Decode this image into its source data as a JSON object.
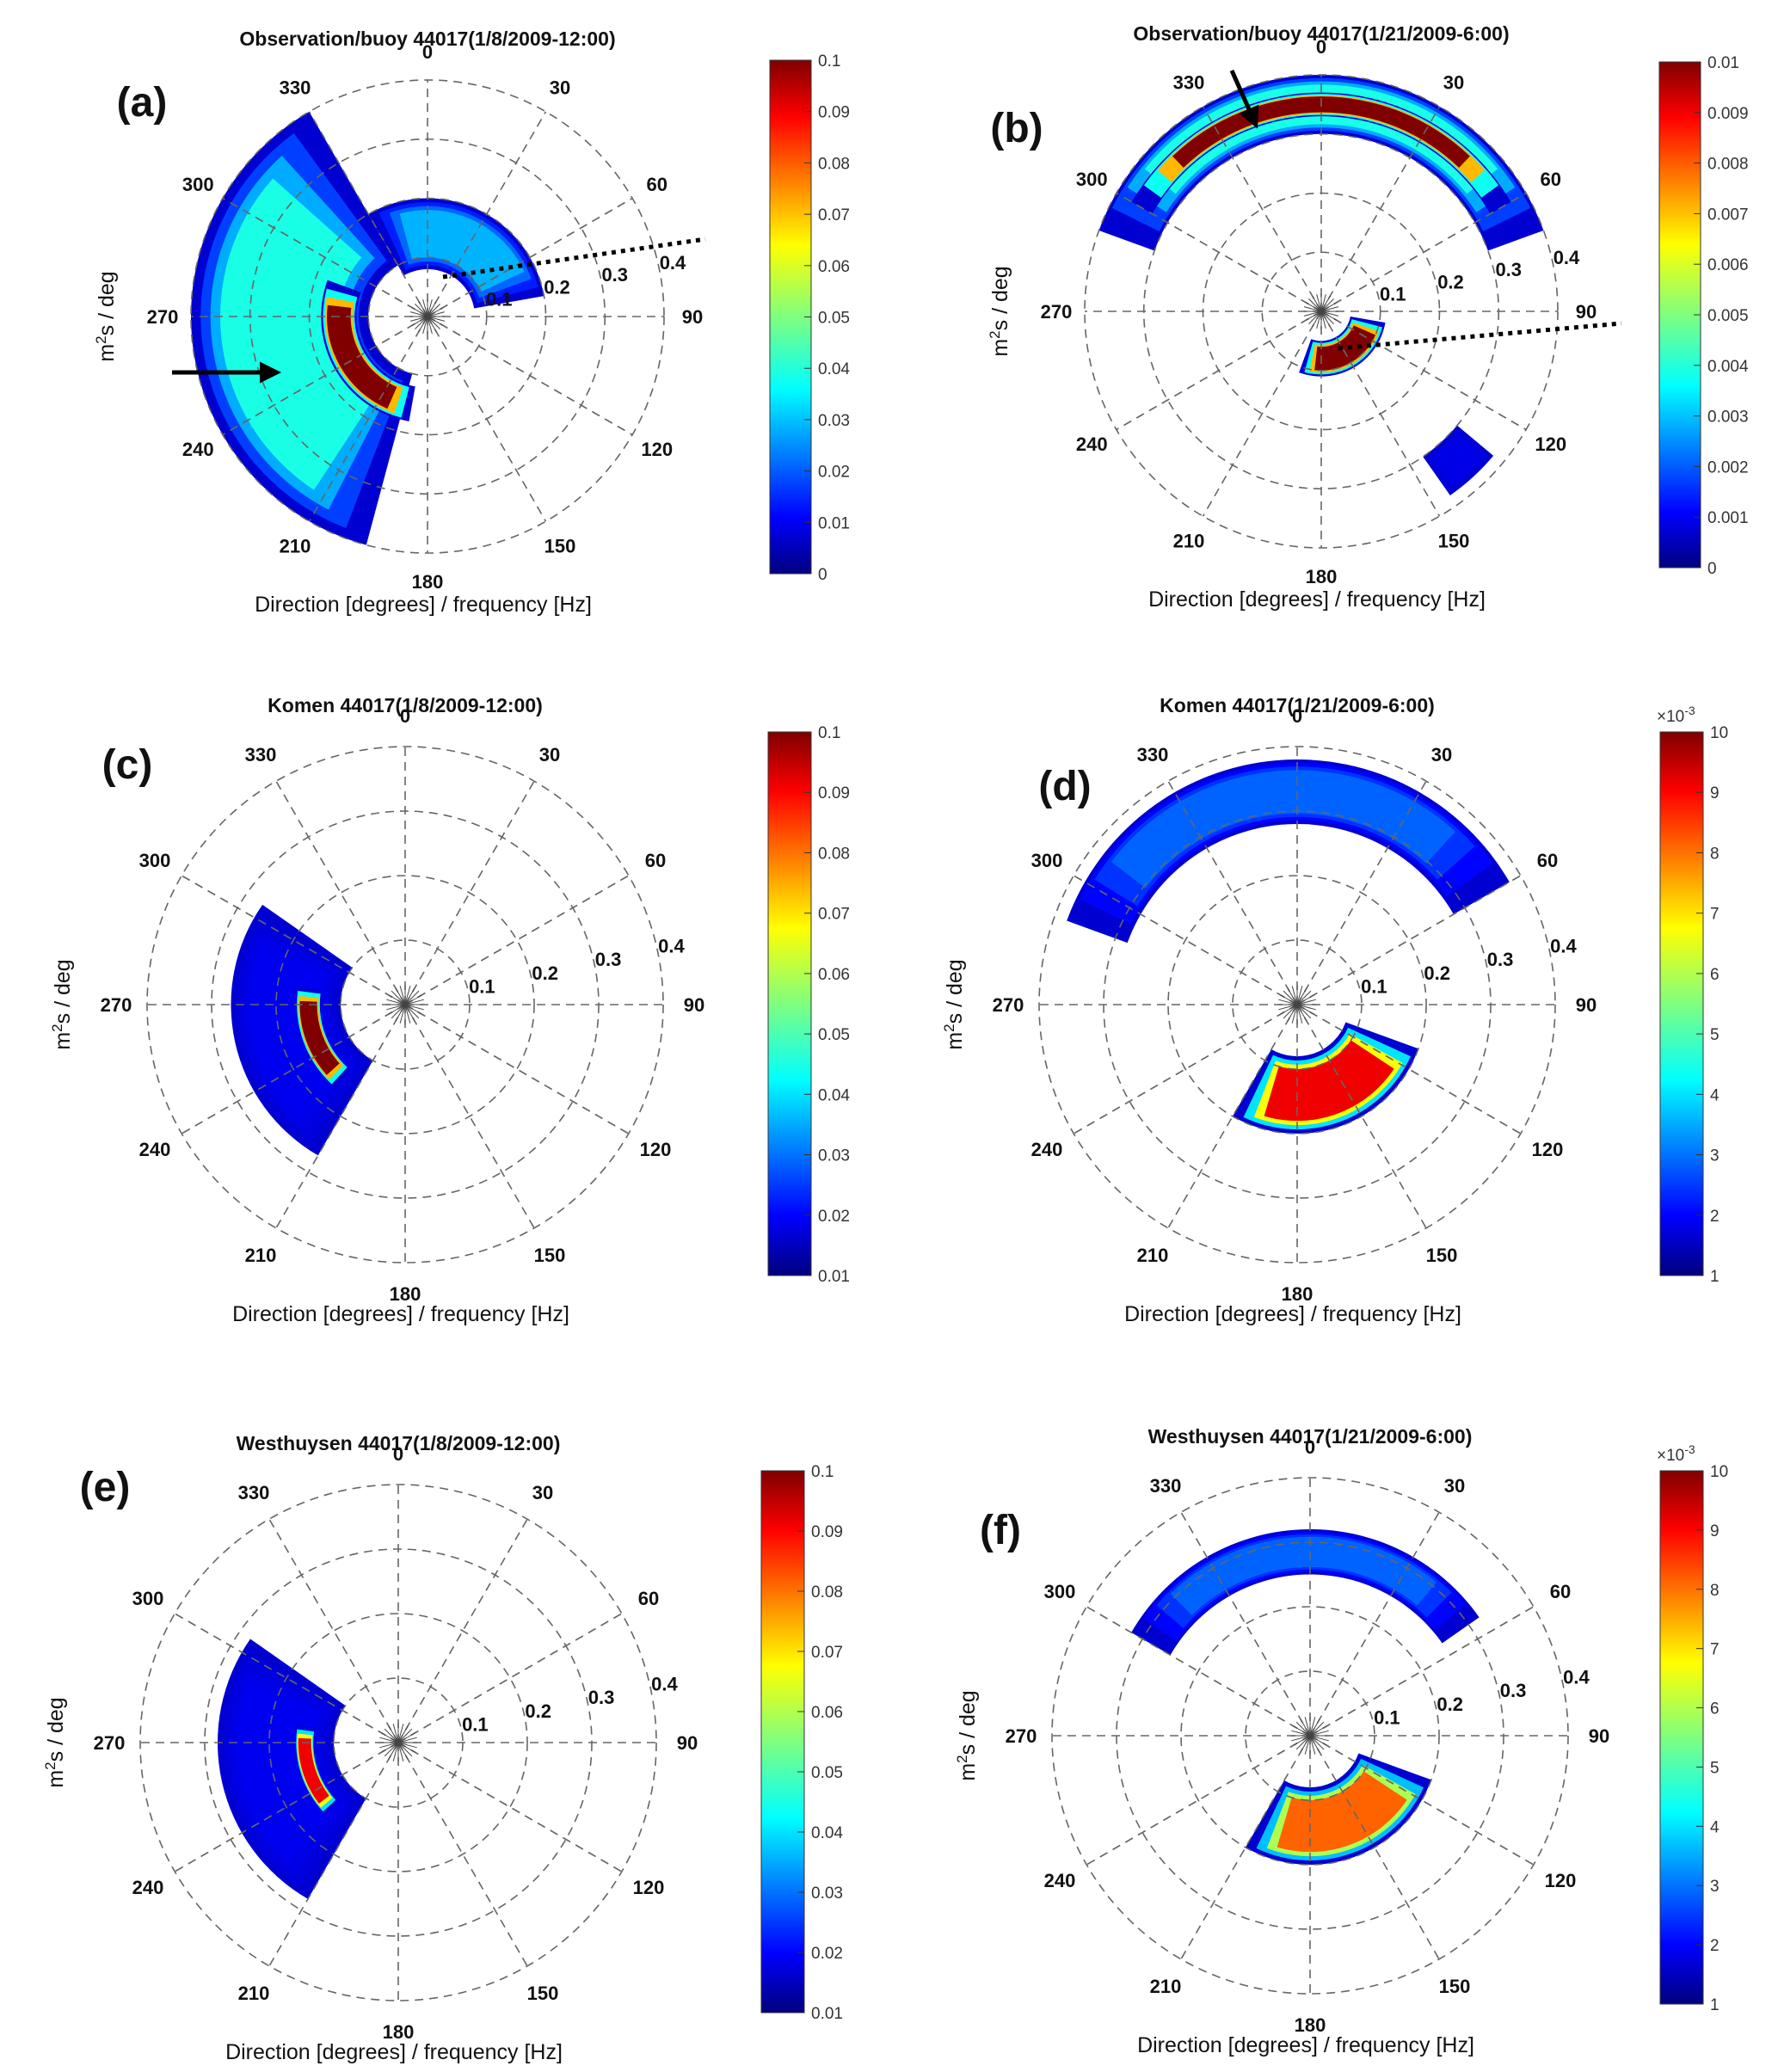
{
  "figure": {
    "xlabel": "Direction [degrees] / frequency [Hz]",
    "ylabel_base": "m",
    "ylabel_sup": "2",
    "ylabel_rest": "s / deg",
    "direction_ticks": [
      "0",
      "30",
      "60",
      "90",
      "120",
      "150",
      "180",
      "210",
      "240",
      "270",
      "300",
      "330"
    ],
    "frequency_ticks": [
      "0.1",
      "0.2",
      "0.3",
      "0.4"
    ],
    "colormap": "jet"
  },
  "chart_data": [
    {
      "panel_label": "(a)",
      "type": "polar-contour",
      "title": "Observation/buoy 44017(1/8/2009-12:00)",
      "colorbar": {
        "ticks": [
          "0",
          "0.01",
          "0.02",
          "0.03",
          "0.04",
          "0.05",
          "0.06",
          "0.07",
          "0.08",
          "0.09",
          "0.1"
        ],
        "range": [
          0,
          0.1
        ]
      },
      "annotations": [
        "arrow pointing at 258 deg / 0.4 Hz",
        "dotted line at ~75 deg"
      ],
      "energy_regions": [
        {
          "dir_from": 195,
          "dir_to": 330,
          "freq_from": 0.1,
          "freq_to": 0.4,
          "level": 0.04
        },
        {
          "dir_from": 190,
          "dir_to": 290,
          "freq_from": 0.12,
          "freq_to": 0.18,
          "level": 0.1
        },
        {
          "dir_from": 330,
          "dir_to": 80,
          "freq_from": 0.08,
          "freq_to": 0.2,
          "level": 0.03
        }
      ]
    },
    {
      "panel_label": "(b)",
      "type": "polar-contour",
      "title": "Observation/buoy 44017(1/21/2009-6:00)",
      "colorbar": {
        "ticks": [
          "0",
          "0.001",
          "0.002",
          "0.003",
          "0.004",
          "0.005",
          "0.006",
          "0.007",
          "0.008",
          "0.009",
          "0.01"
        ],
        "range": [
          0,
          0.01
        ]
      },
      "annotations": [
        "arrow pointing at 340 deg / 0.4 Hz",
        "dotted line at ~95 deg"
      ],
      "energy_regions": [
        {
          "dir_from": 290,
          "dir_to": 70,
          "freq_from": 0.3,
          "freq_to": 0.4,
          "level": 0.004
        },
        {
          "dir_from": 300,
          "dir_to": 60,
          "freq_from": 0.33,
          "freq_to": 0.37,
          "level": 0.01
        },
        {
          "dir_from": 100,
          "dir_to": 200,
          "freq_from": 0.05,
          "freq_to": 0.11,
          "level": 0.01
        },
        {
          "dir_from": 130,
          "dir_to": 145,
          "freq_from": 0.3,
          "freq_to": 0.38,
          "level": 0.001
        }
      ]
    },
    {
      "panel_label": "(c)",
      "type": "polar-contour",
      "title": "Komen 44017(1/8/2009-12:00)",
      "colorbar": {
        "ticks": [
          "0.01",
          "0.02",
          "0.03",
          "0.04",
          "0.05",
          "0.06",
          "0.07",
          "0.08",
          "0.09",
          "0.1"
        ],
        "range": [
          0.01,
          0.1
        ]
      },
      "annotations": [],
      "energy_regions": [
        {
          "dir_from": 210,
          "dir_to": 305,
          "freq_from": 0.1,
          "freq_to": 0.27,
          "level": 0.02
        },
        {
          "dir_from": 220,
          "dir_to": 280,
          "freq_from": 0.13,
          "freq_to": 0.17,
          "level": 0.1
        }
      ]
    },
    {
      "panel_label": "(d)",
      "type": "polar-contour",
      "title": "Komen 44017(1/21/2009-6:00)",
      "colorbar": {
        "multiplier": "×10",
        "multiplier_exp": "-3",
        "ticks": [
          "1",
          "2",
          "3",
          "4",
          "5",
          "6",
          "7",
          "8",
          "9",
          "10"
        ],
        "range": [
          1,
          10
        ]
      },
      "annotations": [],
      "energy_regions": [
        {
          "dir_from": 290,
          "dir_to": 60,
          "freq_from": 0.28,
          "freq_to": 0.38,
          "level": 3
        },
        {
          "dir_from": 110,
          "dir_to": 210,
          "freq_from": 0.08,
          "freq_to": 0.2,
          "level": 9
        }
      ]
    },
    {
      "panel_label": "(e)",
      "type": "polar-contour",
      "title": "Westhuysen 44017(1/8/2009-12:00)",
      "colorbar": {
        "ticks": [
          "0.01",
          "0.02",
          "0.03",
          "0.04",
          "0.05",
          "0.06",
          "0.07",
          "0.08",
          "0.09",
          "0.1"
        ],
        "range": [
          0.01,
          0.1
        ]
      },
      "annotations": [],
      "energy_regions": [
        {
          "dir_from": 210,
          "dir_to": 305,
          "freq_from": 0.1,
          "freq_to": 0.28,
          "level": 0.02
        },
        {
          "dir_from": 225,
          "dir_to": 280,
          "freq_from": 0.13,
          "freq_to": 0.16,
          "level": 0.09
        }
      ]
    },
    {
      "panel_label": "(f)",
      "type": "polar-contour",
      "title": "Westhuysen 44017(1/21/2009-6:00)",
      "colorbar": {
        "multiplier": "×10",
        "multiplier_exp": "-3",
        "ticks": [
          "1",
          "2",
          "3",
          "4",
          "5",
          "6",
          "7",
          "8",
          "9",
          "10"
        ],
        "range": [
          1,
          10
        ]
      },
      "annotations": [],
      "energy_regions": [
        {
          "dir_from": 300,
          "dir_to": 55,
          "freq_from": 0.25,
          "freq_to": 0.32,
          "level": 3
        },
        {
          "dir_from": 110,
          "dir_to": 210,
          "freq_from": 0.08,
          "freq_to": 0.2,
          "level": 8
        }
      ]
    }
  ]
}
